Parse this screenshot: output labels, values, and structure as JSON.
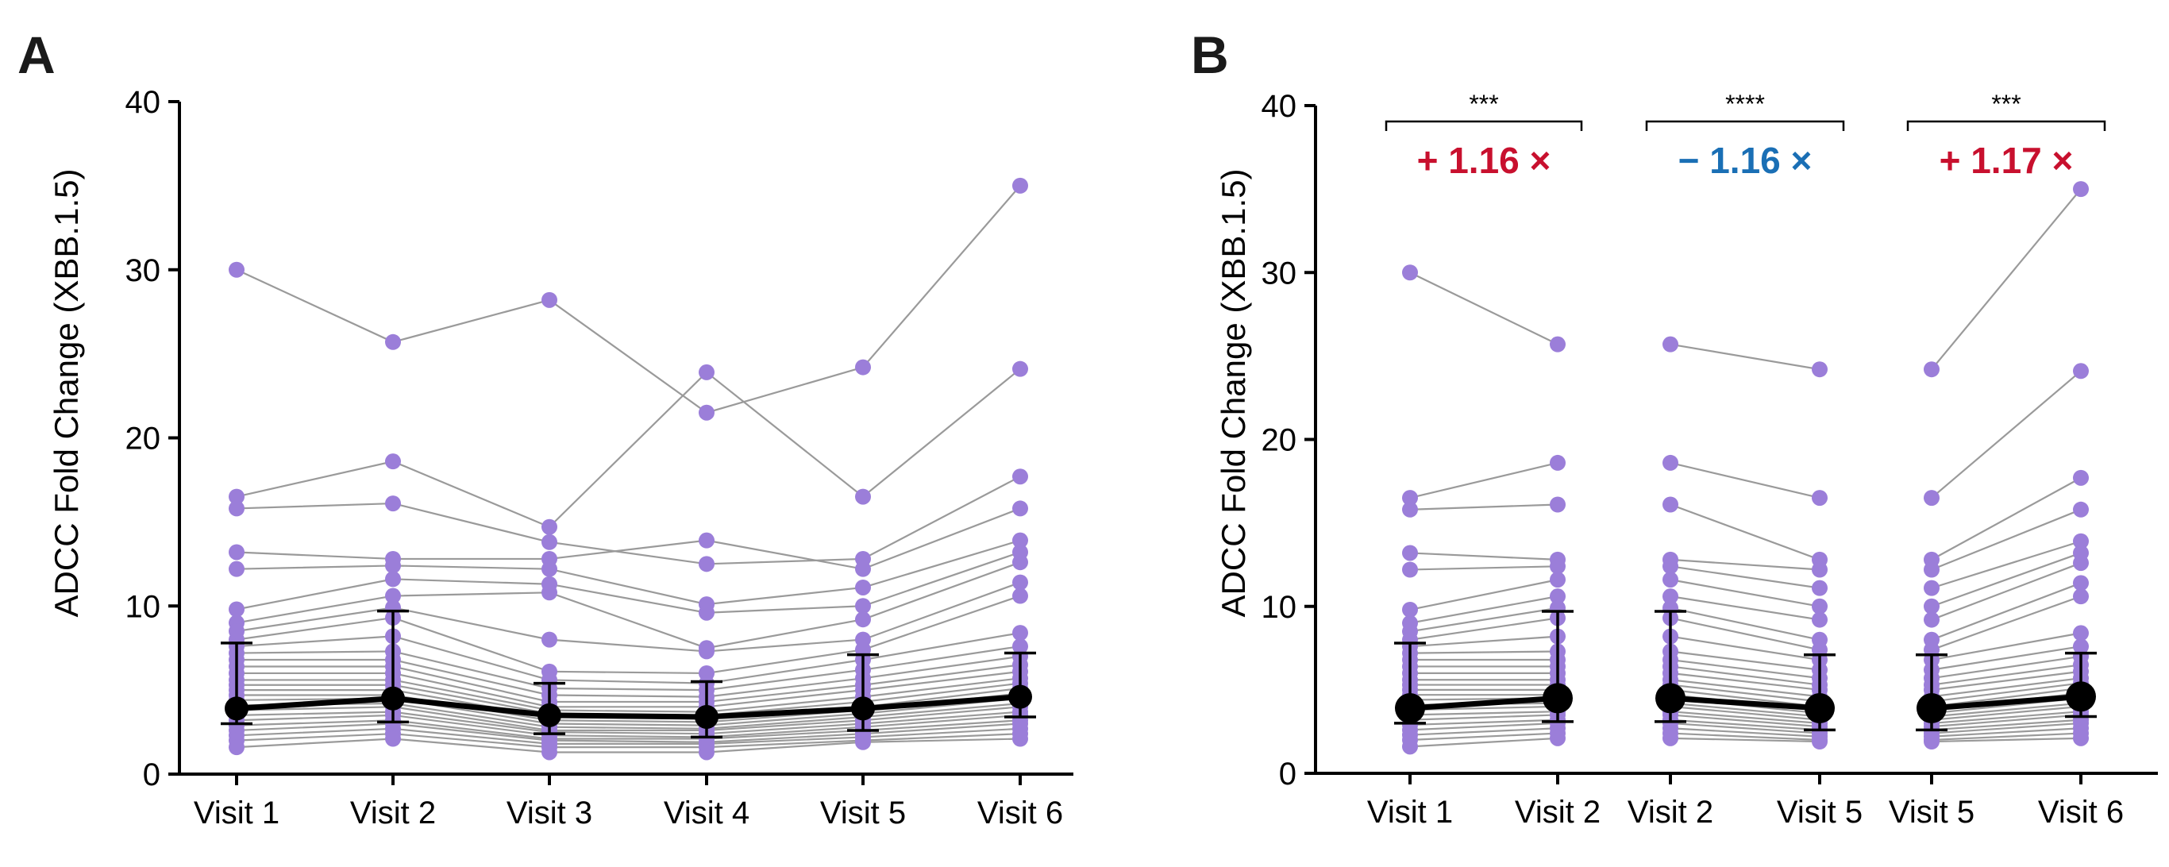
{
  "chart_data": [
    {
      "panel_label": "A",
      "type": "line",
      "ylabel": "ADCC Fold Change (XBB.1.5)",
      "ylim": [
        0,
        40
      ],
      "yticks": [
        "0",
        "10",
        "20",
        "30",
        "40"
      ],
      "categories": [
        "Visit 1",
        "Visit 2",
        "Visit 3",
        "Visit 4",
        "Visit 5",
        "Visit 6"
      ],
      "colors": {
        "points": "#9b7ed9",
        "lines": "#9a9a9a",
        "mean": "#000000"
      },
      "subjects": [
        [
          30,
          25.7,
          28.2,
          21.5,
          24.2,
          35
        ],
        [
          16.5,
          18.6,
          14.7,
          23.9,
          16.5,
          24.1
        ],
        [
          15.8,
          16.1,
          13.8,
          12.5,
          12.8,
          17.7
        ],
        [
          13.2,
          12.8,
          12.8,
          13.9,
          12.2,
          15.8
        ],
        [
          12.2,
          12.4,
          12.2,
          10.1,
          11.1,
          13.9
        ],
        [
          9.8,
          11.6,
          11.3,
          9.6,
          10.0,
          13.2
        ],
        [
          9.0,
          10.6,
          10.8,
          7.5,
          9.2,
          12.6
        ],
        [
          8.5,
          9.9,
          8.0,
          7.3,
          8.0,
          11.4
        ],
        [
          8.0,
          9.3,
          6.1,
          6.0,
          7.4,
          10.6
        ],
        [
          7.6,
          8.2,
          5.6,
          5.4,
          6.8,
          8.4
        ],
        [
          7.2,
          7.3,
          5.1,
          5.0,
          6.2,
          7.6
        ],
        [
          6.8,
          6.8,
          4.7,
          4.6,
          5.7,
          7.0
        ],
        [
          6.4,
          6.4,
          4.3,
          4.3,
          5.3,
          6.5
        ],
        [
          6.0,
          6.0,
          4.0,
          4.0,
          5.0,
          6.1
        ],
        [
          5.6,
          5.6,
          3.8,
          3.7,
          4.6,
          5.7
        ],
        [
          5.3,
          5.3,
          3.6,
          3.5,
          4.3,
          5.4
        ],
        [
          5.0,
          5.0,
          3.4,
          3.3,
          4.0,
          5.1
        ],
        [
          4.7,
          4.7,
          3.2,
          3.1,
          3.8,
          4.8
        ],
        [
          4.4,
          4.5,
          3.0,
          2.9,
          3.6,
          4.5
        ],
        [
          4.1,
          4.2,
          2.8,
          2.7,
          3.4,
          4.2
        ],
        [
          3.8,
          4.0,
          2.6,
          2.6,
          3.2,
          4.0
        ],
        [
          3.5,
          3.7,
          2.5,
          2.4,
          3.0,
          3.7
        ],
        [
          3.2,
          3.5,
          2.3,
          2.2,
          2.8,
          3.5
        ],
        [
          2.9,
          3.2,
          2.1,
          2.1,
          2.6,
          3.2
        ],
        [
          2.6,
          3.0,
          2.0,
          1.9,
          2.4,
          3.0
        ],
        [
          2.3,
          2.7,
          1.8,
          1.8,
          2.2,
          2.7
        ],
        [
          2.0,
          2.4,
          1.6,
          1.6,
          2.0,
          2.4
        ],
        [
          1.6,
          2.1,
          1.3,
          1.3,
          1.9,
          2.1
        ]
      ],
      "mean": [
        3.9,
        4.5,
        3.5,
        3.4,
        3.9,
        4.6
      ],
      "err_low": [
        3.0,
        3.1,
        2.4,
        2.2,
        2.6,
        3.4
      ],
      "err_high": [
        7.8,
        9.7,
        5.4,
        5.5,
        7.1,
        7.2
      ]
    },
    {
      "panel_label": "B",
      "type": "line",
      "ylabel": "ADCC Fold Change (XBB.1.5)",
      "ylim": [
        0,
        40
      ],
      "yticks": [
        "0",
        "10",
        "20",
        "30",
        "40"
      ],
      "categories": [
        "Visit 1",
        "Visit 2",
        "Visit 2",
        "Visit 5",
        "Visit 5",
        "Visit 6"
      ],
      "colors": {
        "points": "#9b7ed9",
        "lines": "#9a9a9a",
        "mean": "#000000",
        "increase": "#c8102e",
        "decrease": "#1a6fb5"
      },
      "comparisons": [
        {
          "pair": [
            0,
            1
          ],
          "significance": "***",
          "fold_change": "+ 1.16 ×",
          "direction": "increase",
          "subjects": [
            [
              30,
              25.7
            ],
            [
              16.5,
              18.6
            ],
            [
              15.8,
              16.1
            ],
            [
              13.2,
              12.8
            ],
            [
              12.2,
              12.4
            ],
            [
              9.8,
              11.6
            ],
            [
              9.0,
              10.6
            ],
            [
              8.5,
              9.9
            ],
            [
              8.0,
              9.3
            ],
            [
              7.6,
              8.2
            ],
            [
              7.2,
              7.3
            ],
            [
              6.8,
              6.8
            ],
            [
              6.4,
              6.4
            ],
            [
              6.0,
              6.0
            ],
            [
              5.6,
              5.6
            ],
            [
              5.3,
              5.3
            ],
            [
              5.0,
              5.0
            ],
            [
              4.7,
              4.7
            ],
            [
              4.4,
              4.5
            ],
            [
              4.1,
              4.2
            ],
            [
              3.8,
              4.0
            ],
            [
              3.5,
              3.7
            ],
            [
              3.2,
              3.5
            ],
            [
              2.9,
              3.2
            ],
            [
              2.6,
              3.0
            ],
            [
              2.3,
              2.7
            ],
            [
              2.0,
              2.4
            ],
            [
              1.6,
              2.1
            ]
          ],
          "mean": [
            3.9,
            4.5
          ],
          "err_low": [
            3.0,
            3.1
          ],
          "err_high": [
            7.8,
            9.7
          ]
        },
        {
          "pair": [
            2,
            3
          ],
          "significance": "****",
          "fold_change": "− 1.16 ×",
          "direction": "decrease",
          "subjects": [
            [
              25.7,
              24.2
            ],
            [
              18.6,
              16.5
            ],
            [
              16.1,
              12.8
            ],
            [
              12.8,
              12.2
            ],
            [
              12.4,
              11.1
            ],
            [
              11.6,
              10.0
            ],
            [
              10.6,
              9.2
            ],
            [
              9.9,
              8.0
            ],
            [
              9.3,
              7.4
            ],
            [
              8.2,
              6.8
            ],
            [
              7.3,
              6.2
            ],
            [
              6.8,
              5.7
            ],
            [
              6.4,
              5.3
            ],
            [
              6.0,
              5.0
            ],
            [
              5.6,
              4.6
            ],
            [
              5.3,
              4.3
            ],
            [
              5.0,
              4.0
            ],
            [
              4.7,
              3.8
            ],
            [
              4.5,
              3.6
            ],
            [
              4.2,
              3.4
            ],
            [
              4.0,
              3.2
            ],
            [
              3.7,
              3.0
            ],
            [
              3.5,
              2.8
            ],
            [
              3.2,
              2.6
            ],
            [
              3.0,
              2.4
            ],
            [
              2.7,
              2.2
            ],
            [
              2.4,
              2.0
            ],
            [
              2.1,
              1.9
            ]
          ],
          "mean": [
            4.5,
            3.9
          ],
          "err_low": [
            3.1,
            2.6
          ],
          "err_high": [
            9.7,
            7.1
          ]
        },
        {
          "pair": [
            4,
            5
          ],
          "significance": "***",
          "fold_change": "+ 1.17 ×",
          "direction": "increase",
          "subjects": [
            [
              24.2,
              35
            ],
            [
              16.5,
              24.1
            ],
            [
              12.8,
              17.7
            ],
            [
              12.2,
              15.8
            ],
            [
              11.1,
              13.9
            ],
            [
              10.0,
              13.2
            ],
            [
              9.2,
              12.6
            ],
            [
              8.0,
              11.4
            ],
            [
              7.4,
              10.6
            ],
            [
              6.8,
              8.4
            ],
            [
              6.2,
              7.6
            ],
            [
              5.7,
              7.0
            ],
            [
              5.3,
              6.5
            ],
            [
              5.0,
              6.1
            ],
            [
              4.6,
              5.7
            ],
            [
              4.3,
              5.4
            ],
            [
              4.0,
              5.1
            ],
            [
              3.8,
              4.8
            ],
            [
              3.6,
              4.5
            ],
            [
              3.4,
              4.2
            ],
            [
              3.2,
              4.0
            ],
            [
              3.0,
              3.7
            ],
            [
              2.8,
              3.5
            ],
            [
              2.6,
              3.2
            ],
            [
              2.4,
              3.0
            ],
            [
              2.2,
              2.7
            ],
            [
              2.0,
              2.4
            ],
            [
              1.9,
              2.1
            ]
          ],
          "mean": [
            3.9,
            4.6
          ],
          "err_low": [
            2.6,
            3.4
          ],
          "err_high": [
            7.1,
            7.2
          ]
        }
      ]
    }
  ]
}
